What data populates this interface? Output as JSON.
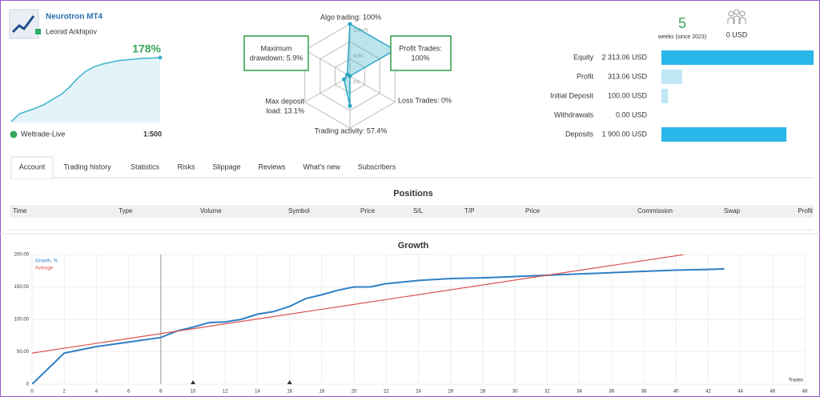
{
  "header": {
    "title": "Neurotron MT4",
    "author": "Leonid Arkhipov",
    "growth": "178%",
    "broker": "Weltrade-Live",
    "leverage": "1:500"
  },
  "mini_growth": {
    "values": [
      0,
      22,
      30,
      38,
      48,
      62,
      75,
      95,
      120,
      140,
      152,
      160,
      165,
      170,
      172,
      174,
      176,
      177,
      178
    ]
  },
  "radar": {
    "ring_labels": [
      "100+%",
      "50%",
      "0%"
    ],
    "axes": [
      {
        "lines": [
          "Algo trading: 100%"
        ],
        "value": 100
      },
      {
        "lines": [
          "Profit Trades:",
          "100%"
        ],
        "value": 100
      },
      {
        "lines": [
          "Loss Trades: 0%"
        ],
        "value": 0
      },
      {
        "lines": [
          "Trading activity: 57.4%"
        ],
        "value": 57.4
      },
      {
        "lines": [
          "Max deposit",
          "load: 13.1%"
        ],
        "value": 13.1
      },
      {
        "lines": [
          "Maximum",
          "drawdown: 5.9%"
        ],
        "value": 5.9
      }
    ]
  },
  "stats": {
    "weeks": "5",
    "weeks_label": "weeks (since 2023)",
    "subscribers": "0 USD"
  },
  "balances": {
    "rows": [
      {
        "label": "Equity",
        "text": "2 313.06 USD",
        "value": 2313.06
      },
      {
        "label": "Profit",
        "text": "313.06 USD",
        "value": 313.06
      },
      {
        "label": "Initial Deposit",
        "text": "100.00 USD",
        "value": 100
      },
      {
        "label": "Withdrawals",
        "text": "0.00 USD",
        "value": 0
      },
      {
        "label": "Deposits",
        "text": "1 900.00 USD",
        "value": 1900
      }
    ]
  },
  "tabs": [
    "Account",
    "Trading history",
    "Statistics",
    "Risks",
    "Slippage",
    "Reviews",
    "What's new",
    "Subscribers"
  ],
  "positions": {
    "title": "Positions",
    "columns": [
      "Time",
      "Type",
      "Volume",
      "Symbol",
      "Price",
      "S/L",
      "T/P",
      "Price",
      "Commission",
      "Swap",
      "Profit"
    ]
  },
  "growth_chart": {
    "type": "line",
    "title": "Growth",
    "x_label": "Trades",
    "series": [
      {
        "name": "Growth, %",
        "color": "#2f7fc4",
        "x": [
          0,
          2,
          4,
          6,
          8,
          9,
          10,
          11,
          12,
          13,
          14,
          15,
          16,
          17,
          18,
          19,
          20,
          21,
          22,
          24,
          26,
          28,
          30,
          32,
          34,
          36,
          38,
          40,
          42,
          43
        ],
        "values": [
          0,
          48,
          58,
          65,
          72,
          82,
          88,
          95,
          96,
          100,
          108,
          112,
          120,
          132,
          138,
          145,
          150,
          150,
          155,
          160,
          163,
          164,
          166,
          168,
          170,
          172,
          174,
          176,
          177,
          178
        ]
      },
      {
        "name": "Average",
        "color": "#d9534f",
        "x": [
          0,
          40.5
        ],
        "values": [
          48,
          200
        ]
      }
    ],
    "xlim": [
      0,
      48
    ],
    "ylim": [
      0,
      200
    ],
    "xticks": [
      0,
      2,
      4,
      6,
      8,
      10,
      12,
      14,
      16,
      18,
      20,
      22,
      24,
      26,
      28,
      30,
      32,
      34,
      36,
      38,
      40,
      42,
      44,
      46,
      48
    ],
    "yticks": [
      {
        "value": 0,
        "label": "0"
      },
      {
        "value": 50,
        "label": "50.00"
      },
      {
        "value": 100,
        "label": "100.00"
      },
      {
        "value": 150,
        "label": "150.00"
      },
      {
        "value": 200,
        "label": "200.00"
      }
    ],
    "vline_x": 8,
    "markers_x": [
      10,
      16
    ],
    "grid": true
  }
}
